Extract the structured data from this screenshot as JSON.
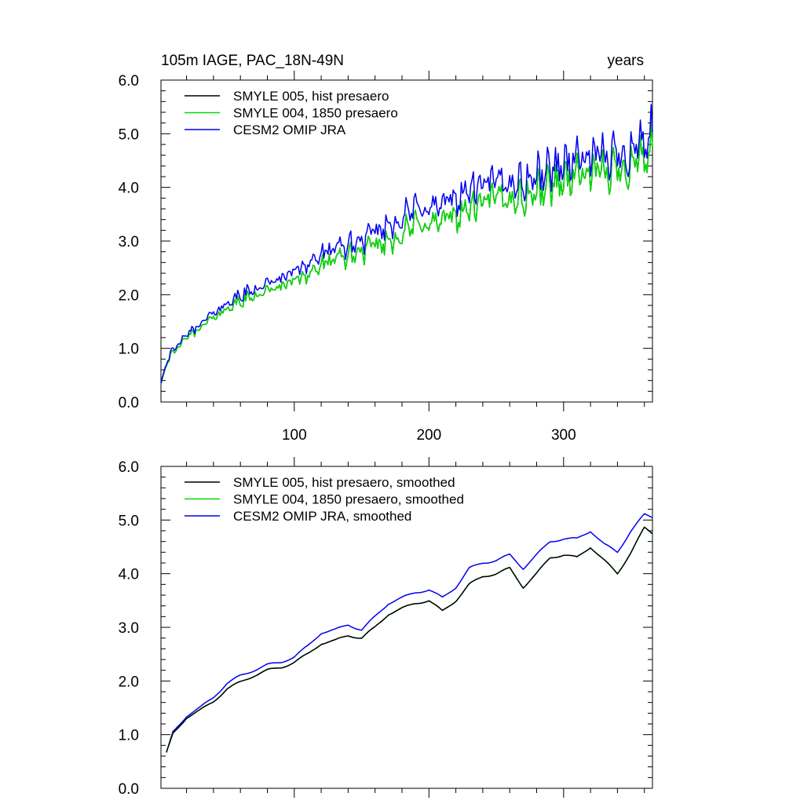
{
  "figure": {
    "title_left": "105m IAGE, PAC_18N-49N",
    "title_right": "years"
  },
  "colors": {
    "smyle005": "#000000",
    "smyle004": "#00dd00",
    "omip": "#0000ee"
  },
  "chart_data": [
    {
      "type": "line",
      "panel": "top",
      "xlim": [
        1,
        366
      ],
      "ylim": [
        0,
        6
      ],
      "xticks": [
        100,
        200,
        300
      ],
      "xtick_labels": [
        "100",
        "200",
        "300"
      ],
      "yticks": [
        0,
        1,
        2,
        3,
        4,
        5,
        6
      ],
      "ytick_labels": [
        "0.0",
        "1.0",
        "2.0",
        "3.0",
        "4.0",
        "5.0",
        "6.0"
      ],
      "legend_position": "top-left",
      "smoothed": false,
      "series": [
        {
          "name": "SMYLE 005, hist presaero",
          "color_key": "smyle005",
          "id": "smyle005"
        },
        {
          "name": "SMYLE 004, 1850 presaero",
          "color_key": "smyle004",
          "id": "smyle004"
        },
        {
          "name": "CESM2 OMIP JRA",
          "color_key": "omip",
          "id": "omip"
        }
      ],
      "trend_knots": {
        "x": [
          1,
          5,
          10,
          20,
          30,
          50,
          70,
          90,
          110,
          130,
          150,
          170,
          190,
          210,
          230,
          250,
          270,
          290,
          310,
          330,
          350,
          366
        ],
        "omip": [
          0.35,
          0.75,
          0.95,
          1.25,
          1.45,
          1.85,
          2.1,
          2.3,
          2.6,
          2.85,
          3.0,
          3.3,
          3.6,
          3.65,
          3.95,
          4.1,
          4.1,
          4.35,
          4.55,
          4.55,
          4.7,
          5.0
        ],
        "smyle004": [
          0.33,
          0.72,
          0.9,
          1.2,
          1.38,
          1.75,
          1.98,
          2.15,
          2.4,
          2.65,
          2.8,
          3.0,
          3.3,
          3.35,
          3.6,
          3.8,
          3.8,
          4.05,
          4.25,
          4.25,
          4.45,
          4.7
        ],
        "smyle005": [
          0.33,
          0.72,
          0.9,
          1.2,
          1.38,
          1.75,
          1.98,
          2.15,
          2.4,
          2.65,
          2.8,
          3.0,
          3.3,
          3.35,
          3.6,
          3.8,
          3.8,
          4.05,
          4.25,
          4.25,
          4.45,
          4.7
        ]
      }
    },
    {
      "type": "line",
      "panel": "bottom",
      "xlim": [
        1,
        366
      ],
      "ylim": [
        0,
        6
      ],
      "xticks": [
        100,
        200,
        300
      ],
      "yticks": [
        0,
        1,
        2,
        3,
        4,
        5,
        6
      ],
      "ytick_labels": [
        "0.0",
        "1.0",
        "2.0",
        "3.0",
        "4.0",
        "5.0",
        "6.0"
      ],
      "legend_position": "top-left",
      "smoothed": true,
      "series": [
        {
          "name": "SMYLE 005, hist presaero, smoothed",
          "color_key": "smyle005",
          "id": "smyle005"
        },
        {
          "name": "SMYLE 004, 1850 presaero, smoothed",
          "color_key": "smyle004",
          "id": "smyle004"
        },
        {
          "name": "CESM2 OMIP JRA, smoothed",
          "color_key": "omip",
          "id": "omip"
        }
      ],
      "trend_knots": {
        "x": [
          5,
          10,
          20,
          30,
          40,
          50,
          60,
          70,
          80,
          90,
          100,
          110,
          120,
          130,
          140,
          150,
          160,
          170,
          180,
          190,
          200,
          210,
          220,
          230,
          240,
          250,
          260,
          270,
          280,
          290,
          300,
          310,
          320,
          330,
          340,
          350,
          360,
          366
        ],
        "omip": [
          0.65,
          1.05,
          1.35,
          1.5,
          1.7,
          1.95,
          2.1,
          2.2,
          2.3,
          2.35,
          2.45,
          2.65,
          2.9,
          2.95,
          3.05,
          2.95,
          3.2,
          3.45,
          3.55,
          3.65,
          3.7,
          3.55,
          3.75,
          4.1,
          4.2,
          4.25,
          4.35,
          4.1,
          4.35,
          4.6,
          4.65,
          4.65,
          4.8,
          4.55,
          4.4,
          4.8,
          5.1,
          5.05
        ],
        "smyle004": [
          0.65,
          1.02,
          1.32,
          1.45,
          1.62,
          1.85,
          1.98,
          2.1,
          2.2,
          2.25,
          2.35,
          2.5,
          2.7,
          2.75,
          2.85,
          2.8,
          3.0,
          3.25,
          3.35,
          3.45,
          3.5,
          3.3,
          3.5,
          3.8,
          3.95,
          4.0,
          4.1,
          3.75,
          4.0,
          4.3,
          4.35,
          4.3,
          4.5,
          4.25,
          4.0,
          4.4,
          4.85,
          4.75
        ],
        "smyle005": [
          0.65,
          1.02,
          1.32,
          1.45,
          1.62,
          1.85,
          1.98,
          2.1,
          2.2,
          2.25,
          2.35,
          2.5,
          2.7,
          2.75,
          2.85,
          2.8,
          3.0,
          3.25,
          3.35,
          3.45,
          3.5,
          3.3,
          3.5,
          3.8,
          3.95,
          4.0,
          4.1,
          3.75,
          4.0,
          4.3,
          4.35,
          4.3,
          4.5,
          4.25,
          4.0,
          4.4,
          4.85,
          4.75
        ]
      }
    }
  ]
}
